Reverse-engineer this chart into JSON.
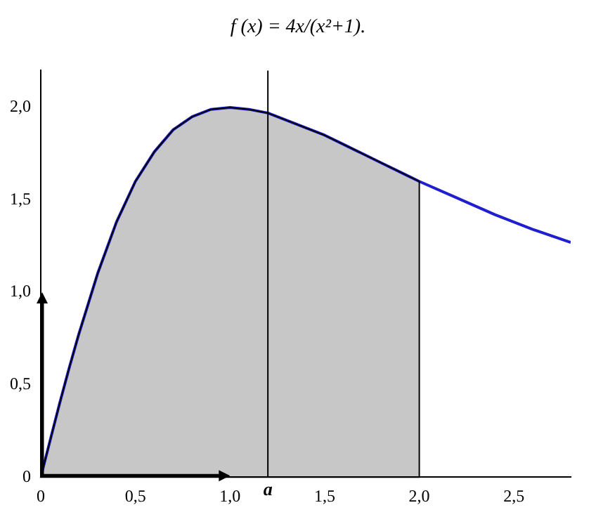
{
  "chart_data": {
    "type": "line",
    "title": "f (x) = 4x/(x²+1).",
    "x": [
      0,
      0.05,
      0.1,
      0.15,
      0.2,
      0.3,
      0.4,
      0.5,
      0.6,
      0.7,
      0.8,
      0.9,
      1,
      1.1,
      1.2,
      1.3,
      1.4,
      1.5,
      1.6,
      1.7,
      1.8,
      1.9,
      2,
      2.2,
      2.4,
      2.6,
      2.8
    ],
    "series": [
      {
        "color": "#1f1fd0",
        "values": [
          0,
          0.2,
          0.4,
          0.59,
          0.77,
          1.1,
          1.38,
          1.6,
          1.76,
          1.88,
          1.95,
          1.99,
          2,
          1.99,
          1.97,
          1.93,
          1.89,
          1.85,
          1.8,
          1.75,
          1.7,
          1.65,
          1.6,
          1.51,
          1.42,
          1.34,
          1.27
        ]
      },
      {
        "type": "area",
        "color": "#000000",
        "x": [
          0,
          0.05,
          0.1,
          0.15,
          0.2,
          0.3,
          0.4,
          0.5,
          0.6,
          0.7,
          0.8,
          0.9,
          1,
          1.1,
          1.2,
          1.3,
          1.4,
          1.5,
          1.6,
          1.7,
          1.8,
          1.9,
          2
        ],
        "values": [
          0,
          0.2,
          0.4,
          0.59,
          0.77,
          1.1,
          1.38,
          1.6,
          1.76,
          1.88,
          1.95,
          1.99,
          2,
          1.99,
          1.97,
          1.93,
          1.89,
          1.85,
          1.8,
          1.75,
          1.7,
          1.65,
          1.6
        ]
      }
    ],
    "xlim": [
      0,
      2.8
    ],
    "ylim": [
      0,
      2.2
    ],
    "xticks": [
      {
        "value": 0,
        "label": "0"
      },
      {
        "value": 0.5,
        "label": "0,5"
      },
      {
        "value": 1,
        "label": "1,0"
      },
      {
        "value": 1.5,
        "label": "1,5"
      },
      {
        "value": 2,
        "label": "2,0"
      },
      {
        "value": 2.5,
        "label": "2,5"
      }
    ],
    "yticks": [
      {
        "value": 0,
        "label": "0"
      },
      {
        "value": 0.5,
        "label": "0,5"
      },
      {
        "value": 1,
        "label": "1,0"
      },
      {
        "value": 1.5,
        "label": "1,5"
      },
      {
        "value": 2,
        "label": "2,0"
      }
    ],
    "grid": false,
    "legend": false,
    "marker": "none",
    "line_style": "solid",
    "ref_lines": [
      {
        "axis": "x",
        "value": 1.2,
        "label": "a"
      }
    ]
  }
}
